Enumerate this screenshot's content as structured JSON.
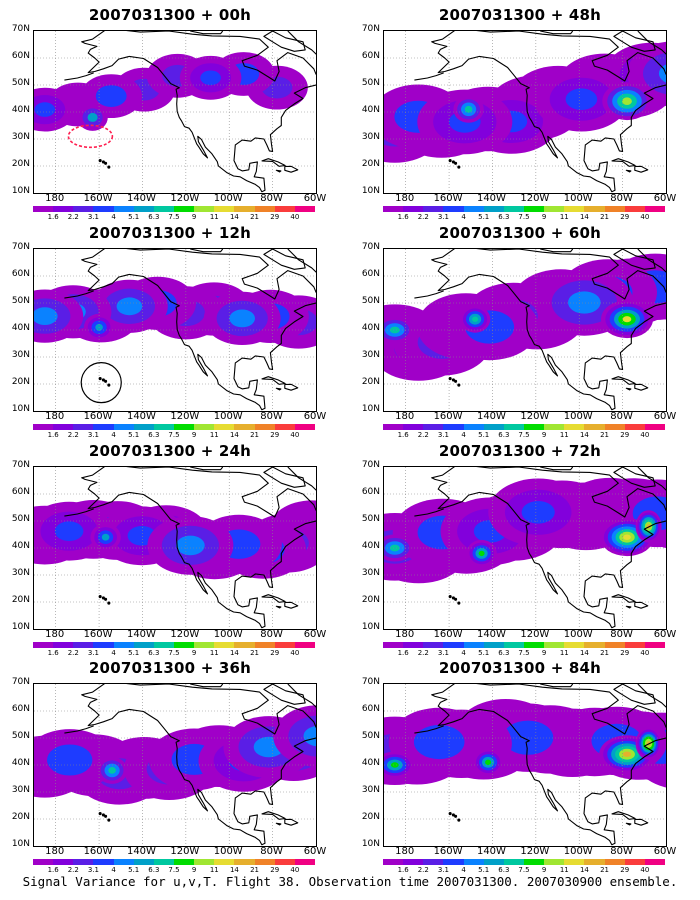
{
  "caption": "Signal Variance for u,v,T. Flight 38. Observation time 2007031300. 2007030900 ensemble.",
  "panels": [
    {
      "title": "2007031300 + 00h",
      "intensity": 0.35,
      "extent": 0.3,
      "marker": "red-dashed-circle"
    },
    {
      "title": "2007031300 + 12h",
      "intensity": 0.45,
      "extent": 0.55,
      "marker": "black-circle"
    },
    {
      "title": "2007031300 + 24h",
      "intensity": 0.5,
      "extent": 0.7
    },
    {
      "title": "2007031300 + 36h",
      "intensity": 0.6,
      "extent": 0.78
    },
    {
      "title": "2007031300 + 48h",
      "intensity": 0.6,
      "extent": 0.85
    },
    {
      "title": "2007031300 + 60h",
      "intensity": 0.75,
      "extent": 0.9
    },
    {
      "title": "2007031300 + 72h",
      "intensity": 0.85,
      "extent": 0.93
    },
    {
      "title": "2007031300 + 84h",
      "intensity": 0.95,
      "extent": 0.95
    }
  ],
  "lat_labels": [
    "70N",
    "60N",
    "50N",
    "40N",
    "30N",
    "20N",
    "10N"
  ],
  "lon_labels": [
    "180",
    "160W",
    "140W",
    "120W",
    "100W",
    "80W",
    "60W"
  ],
  "colorbar": {
    "labels": [
      "1.6",
      "2.2",
      "3.1",
      "4",
      "5.1",
      "6.3",
      "7.5",
      "9",
      "11",
      "14",
      "21",
      "29",
      "40"
    ],
    "colors": [
      "#a000c8",
      "#8200dc",
      "#5a1ee6",
      "#1e3cff",
      "#0a82ff",
      "#00a0c8",
      "#00c8a0",
      "#00dc00",
      "#a0e632",
      "#e6dc32",
      "#e6af2d",
      "#f08228",
      "#fa3c3c",
      "#f00082"
    ]
  }
}
